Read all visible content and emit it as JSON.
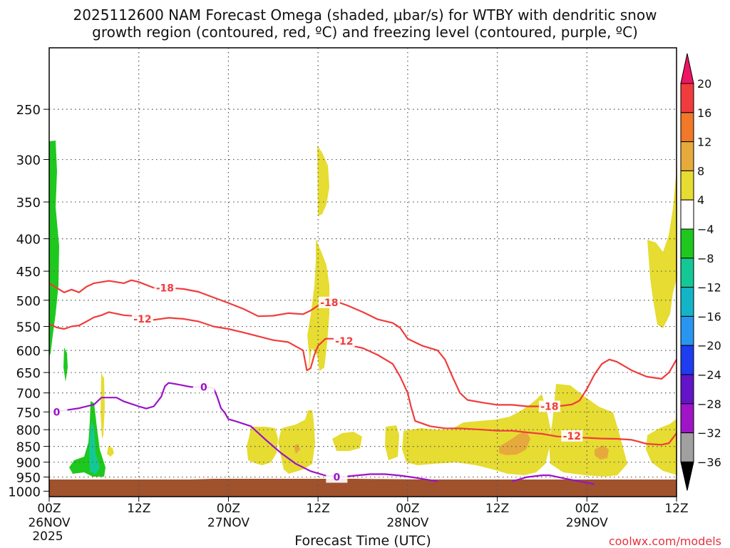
{
  "chart_data": {
    "type": "heatmap",
    "title_lines": [
      "2025112600 NAM Forecast Omega (shaded, μbar/s) for WTBY with dendritic snow",
      "growth region (contoured, red, ºC) and freezing level (contoured, purple, ºC)"
    ],
    "xlabel": "Forecast Time (UTC)",
    "credit": "coolwx.com/models",
    "x_ticks": [
      {
        "hour": 0,
        "label": "00Z",
        "sub": "26NOV",
        "sub2": "2025"
      },
      {
        "hour": 12,
        "label": "12Z",
        "sub": "",
        "sub2": ""
      },
      {
        "hour": 24,
        "label": "00Z",
        "sub": "27NOV",
        "sub2": ""
      },
      {
        "hour": 36,
        "label": "12Z",
        "sub": "",
        "sub2": ""
      },
      {
        "hour": 48,
        "label": "00Z",
        "sub": "28NOV",
        "sub2": ""
      },
      {
        "hour": 60,
        "label": "12Z",
        "sub": "",
        "sub2": ""
      },
      {
        "hour": 72,
        "label": "00Z",
        "sub": "29NOV",
        "sub2": ""
      },
      {
        "hour": 84,
        "label": "12Z",
        "sub": "",
        "sub2": ""
      }
    ],
    "xlim": [
      0,
      84
    ],
    "y_ticks": [
      250,
      300,
      350,
      400,
      450,
      500,
      550,
      600,
      650,
      700,
      750,
      800,
      850,
      900,
      950,
      1000
    ],
    "ylim": [
      200,
      1020
    ],
    "y_scale": "log-pressure",
    "colorbar": {
      "levels": [
        "20",
        "16",
        "12",
        "8",
        "4",
        "−4",
        "−8",
        "−12",
        "−16",
        "−20",
        "−24",
        "−28",
        "−32",
        "−36"
      ],
      "colors": [
        "#f01464",
        "#f03c3c",
        "#f07828",
        "#e6aa3c",
        "#e6dc32",
        "#ffffff",
        "#1ec81e",
        "#14c896",
        "#14b4c8",
        "#2896f0",
        "#1e3cf0",
        "#6414c8",
        "#a014c8",
        "#a0a0a0",
        "#000000"
      ]
    },
    "omega_fill_colors": {
      "pos4": "#e6dc32",
      "pos8": "#e6aa3c",
      "neg4": "#1ec81e",
      "neg8": "#14c896"
    },
    "terrain_color": "#a0522d",
    "contours": [
      {
        "label": "-18",
        "color": "#f03c3c",
        "points": [
          [
            0,
            470
          ],
          [
            1,
            478
          ],
          [
            2,
            486
          ],
          [
            3,
            481
          ],
          [
            4,
            486
          ],
          [
            5,
            476
          ],
          [
            6,
            470
          ],
          [
            8,
            466
          ],
          [
            10,
            470
          ],
          [
            11,
            465
          ],
          [
            12,
            468
          ],
          [
            14,
            478
          ],
          [
            16,
            478
          ],
          [
            18,
            480
          ],
          [
            20,
            485
          ],
          [
            22,
            495
          ],
          [
            24,
            505
          ],
          [
            26,
            516
          ],
          [
            28,
            530
          ],
          [
            30,
            529
          ],
          [
            32,
            524
          ],
          [
            34,
            526
          ],
          [
            35,
            519
          ],
          [
            36,
            510
          ],
          [
            37,
            500
          ],
          [
            38,
            500
          ],
          [
            40,
            510
          ],
          [
            42,
            522
          ],
          [
            44,
            536
          ],
          [
            46,
            543
          ],
          [
            47,
            553
          ],
          [
            48,
            575
          ],
          [
            50,
            590
          ],
          [
            52,
            600
          ],
          [
            53,
            620
          ],
          [
            54,
            660
          ],
          [
            55,
            700
          ],
          [
            56,
            718
          ],
          [
            58,
            725
          ],
          [
            60,
            731
          ],
          [
            62,
            731
          ],
          [
            64,
            735
          ],
          [
            66,
            735
          ],
          [
            68,
            735
          ],
          [
            70,
            730
          ],
          [
            71,
            720
          ],
          [
            72,
            690
          ],
          [
            73,
            655
          ],
          [
            74,
            630
          ],
          [
            75,
            620
          ],
          [
            76,
            625
          ],
          [
            78,
            645
          ],
          [
            80,
            660
          ],
          [
            82,
            665
          ],
          [
            83,
            650
          ],
          [
            84,
            620
          ]
        ],
        "label_positions": [
          [
            15.5,
            478
          ],
          [
            37.5,
            504
          ],
          [
            67,
            735
          ]
        ]
      },
      {
        "label": "-12",
        "color": "#f03c3c",
        "points": [
          [
            0,
            545
          ],
          [
            1,
            552
          ],
          [
            2,
            555
          ],
          [
            3,
            550
          ],
          [
            4,
            548
          ],
          [
            5,
            540
          ],
          [
            6,
            532
          ],
          [
            7,
            528
          ],
          [
            8,
            522
          ],
          [
            10,
            528
          ],
          [
            12,
            530
          ],
          [
            14,
            537
          ],
          [
            16,
            533
          ],
          [
            18,
            535
          ],
          [
            20,
            540
          ],
          [
            22,
            550
          ],
          [
            24,
            555
          ],
          [
            26,
            562
          ],
          [
            28,
            570
          ],
          [
            30,
            578
          ],
          [
            32,
            582
          ],
          [
            34,
            600
          ],
          [
            34.5,
            645
          ],
          [
            35,
            640
          ],
          [
            35.5,
            610
          ],
          [
            36,
            590
          ],
          [
            37,
            575
          ],
          [
            38,
            575
          ],
          [
            40,
            588
          ],
          [
            42,
            595
          ],
          [
            44,
            610
          ],
          [
            46,
            630
          ],
          [
            47,
            660
          ],
          [
            48,
            700
          ],
          [
            48.5,
            740
          ],
          [
            49,
            775
          ],
          [
            51,
            790
          ],
          [
            53,
            796
          ],
          [
            55,
            796
          ],
          [
            58,
            800
          ],
          [
            60,
            803
          ],
          [
            62,
            803
          ],
          [
            64,
            808
          ],
          [
            66,
            812
          ],
          [
            68,
            820
          ],
          [
            70,
            822
          ],
          [
            72,
            824
          ],
          [
            74,
            826
          ],
          [
            76,
            827
          ],
          [
            78,
            830
          ],
          [
            80,
            842
          ],
          [
            82,
            845
          ],
          [
            83,
            840
          ],
          [
            84,
            810
          ],
          [
            84.5,
            750
          ],
          [
            85,
            720
          ]
        ],
        "label_positions": [
          [
            12.5,
            535
          ],
          [
            39.5,
            580
          ],
          [
            70,
            818
          ]
        ]
      },
      {
        "label": "0",
        "color": "#9b12c8",
        "points": [
          [
            0,
            750
          ],
          [
            2,
            746
          ],
          [
            4,
            740
          ],
          [
            6,
            730
          ],
          [
            7,
            712
          ],
          [
            9,
            712
          ],
          [
            10,
            722
          ],
          [
            12,
            735
          ],
          [
            13,
            741
          ],
          [
            14,
            735
          ],
          [
            15,
            710
          ],
          [
            15.5,
            683
          ],
          [
            16,
            675
          ],
          [
            17,
            678
          ],
          [
            19,
            685
          ],
          [
            21,
            685
          ],
          [
            22,
            688
          ],
          [
            22.5,
            710
          ],
          [
            23,
            740
          ],
          [
            23.5,
            752
          ],
          [
            24,
            770
          ],
          [
            25,
            776
          ],
          [
            27,
            790
          ],
          [
            29,
            830
          ],
          [
            31,
            870
          ],
          [
            33,
            905
          ],
          [
            35,
            930
          ],
          [
            37,
            945
          ],
          [
            39,
            950
          ],
          [
            41,
            945
          ],
          [
            43,
            940
          ],
          [
            45,
            940
          ],
          [
            47,
            945
          ],
          [
            49,
            952
          ],
          [
            52,
            965
          ]
        ],
        "label_positions": [
          [
            1,
            750
          ],
          [
            20.7,
            685
          ],
          [
            38.5,
            950
          ]
        ]
      },
      {
        "label": "",
        "color": "#9b12c8",
        "points": [
          [
            62,
            965
          ],
          [
            64,
            950
          ],
          [
            66,
            944
          ],
          [
            67,
            944
          ],
          [
            69,
            955
          ],
          [
            71,
            965
          ],
          [
            73,
            975
          ]
        ],
        "label_positions": []
      }
    ]
  }
}
